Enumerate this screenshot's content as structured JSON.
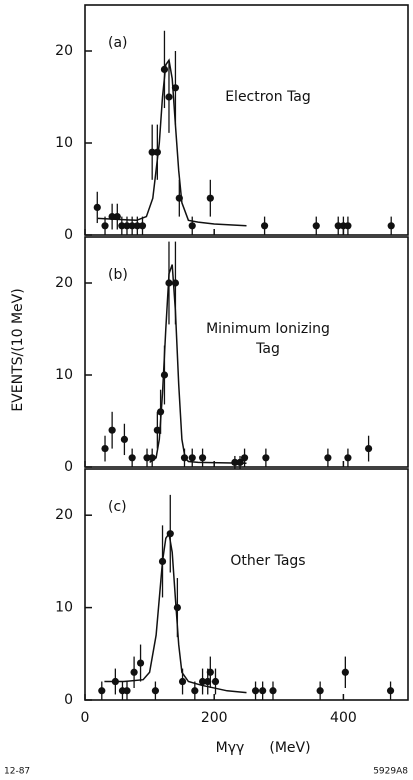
{
  "y_label": "EVENTS/(10 MeV)",
  "x_label": "Mγγ",
  "x_unit": "(MeV)",
  "footer_left": "12-87",
  "footer_right": "5929A8",
  "chart_data": [
    {
      "type": "scatter",
      "panel_label": "(a)",
      "annotation": [
        "Electron Tag"
      ],
      "color": "#111",
      "x": [
        19,
        31,
        42,
        50,
        57,
        65,
        73,
        81,
        89,
        104,
        112,
        123,
        130,
        140,
        146,
        166,
        194,
        278,
        358,
        392,
        400,
        407,
        474
      ],
      "values": [
        3,
        1,
        2,
        2,
        1,
        1,
        1,
        1,
        1,
        9,
        9,
        18,
        15,
        16,
        4,
        1,
        4,
        1,
        1,
        1,
        1,
        1,
        1
      ],
      "errors": [
        1.7,
        1,
        1.4,
        1.4,
        1,
        1,
        1,
        1,
        1,
        3,
        3,
        4.2,
        3.9,
        4,
        2,
        1,
        2,
        1,
        1,
        1,
        1,
        1,
        1
      ],
      "fit": {
        "x": [
          20,
          50,
          80,
          95,
          105,
          115,
          120,
          125,
          130,
          135,
          140,
          145,
          150,
          160,
          175,
          200,
          250
        ],
        "values": [
          1.8,
          1.7,
          1.6,
          2,
          4,
          10,
          15,
          18.5,
          19,
          17,
          12,
          7,
          3.5,
          1.6,
          1.4,
          1.2,
          1
        ]
      },
      "xlim": [
        0,
        500
      ],
      "ylim": [
        0,
        25
      ],
      "yticks": [
        0,
        10,
        20
      ]
    },
    {
      "type": "scatter",
      "panel_label": "(b)",
      "annotation": [
        "Minimum Ionizing",
        "Tag"
      ],
      "color": "#111",
      "x": [
        31,
        42,
        61,
        73,
        96,
        104,
        112,
        117,
        123,
        130,
        140,
        154,
        166,
        182,
        232,
        240,
        247,
        280,
        376,
        407,
        439
      ],
      "values": [
        2,
        4,
        3,
        1,
        1,
        1,
        4,
        6,
        10,
        20,
        20,
        1,
        1,
        1,
        0.5,
        0.5,
        1,
        1,
        1,
        1,
        2
      ],
      "errors": [
        1.4,
        2,
        1.7,
        1,
        1,
        1,
        2,
        2.4,
        3.2,
        4.5,
        4.5,
        1,
        1,
        1,
        0.7,
        0.7,
        1,
        1,
        1,
        1,
        1.4
      ],
      "fit": {
        "x": [
          100,
          110,
          115,
          120,
          125,
          130,
          135,
          140,
          145,
          150,
          155,
          160,
          175,
          250
        ],
        "values": [
          0.5,
          1,
          3,
          8,
          15,
          21,
          22,
          17,
          9,
          3,
          1,
          0.6,
          0.5,
          0.4
        ]
      },
      "xlim": [
        0,
        500
      ],
      "ylim": [
        0,
        25
      ],
      "yticks": [
        0,
        10,
        20
      ]
    },
    {
      "type": "scatter",
      "panel_label": "(c)",
      "annotation": [
        "Other Tags"
      ],
      "color": "#111",
      "x": [
        26,
        47,
        58,
        65,
        76,
        86,
        109,
        120,
        132,
        143,
        151,
        170,
        182,
        190,
        194,
        202,
        264,
        275,
        291,
        364,
        403,
        473
      ],
      "values": [
        1,
        2,
        1,
        1,
        3,
        4,
        1,
        15,
        18,
        10,
        2,
        1,
        2,
        2,
        3,
        2,
        1,
        1,
        1,
        1,
        3,
        1
      ],
      "errors": [
        1,
        1.4,
        1,
        1,
        1.7,
        2,
        1,
        3.9,
        4.2,
        3.2,
        1.4,
        1,
        1.4,
        1.4,
        1.7,
        1.4,
        1,
        1,
        1,
        1,
        1.7,
        1
      ],
      "fit": {
        "x": [
          30,
          60,
          90,
          100,
          110,
          115,
          120,
          125,
          130,
          135,
          140,
          145,
          150,
          160,
          180,
          220,
          250
        ],
        "values": [
          2,
          2,
          2.2,
          3,
          7,
          11,
          15,
          17.5,
          18,
          16,
          11,
          6,
          3,
          2,
          1.6,
          1,
          0.8
        ]
      },
      "xlim": [
        0,
        500
      ],
      "ylim": [
        0,
        25
      ],
      "yticks": [
        0,
        10,
        20
      ],
      "xticks": [
        0,
        200,
        400
      ]
    }
  ]
}
